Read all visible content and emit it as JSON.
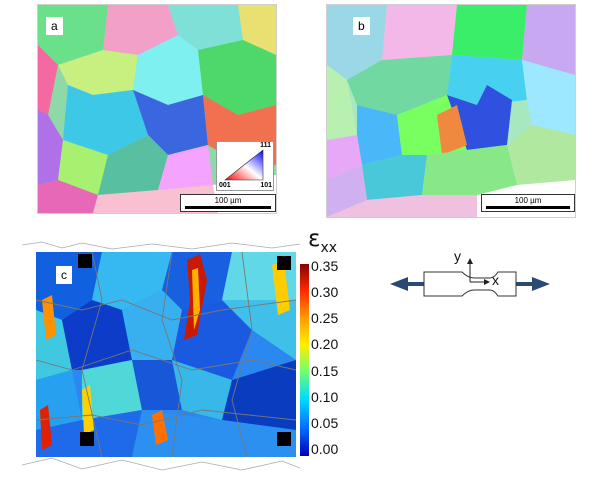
{
  "panels": {
    "a": {
      "label": "a",
      "scalebar": "100 µm"
    },
    "b": {
      "label": "b",
      "scalebar": "100 µm"
    },
    "c": {
      "label": "c"
    }
  },
  "ipf_key": {
    "top": "111",
    "left": "001",
    "right": "101"
  },
  "colorbar": {
    "title": "ε",
    "subscript": "xx",
    "ticks": [
      "0.35",
      "0.30",
      "0.25",
      "0.20",
      "0.15",
      "0.10",
      "0.05",
      "0.00"
    ],
    "colors": [
      "#a50000",
      "#ff2200",
      "#ff9900",
      "#ffee00",
      "#66ff66",
      "#00ddff",
      "#0077ff",
      "#0000c8"
    ]
  },
  "specimen": {
    "y_label": "y",
    "x_label": "x"
  }
}
